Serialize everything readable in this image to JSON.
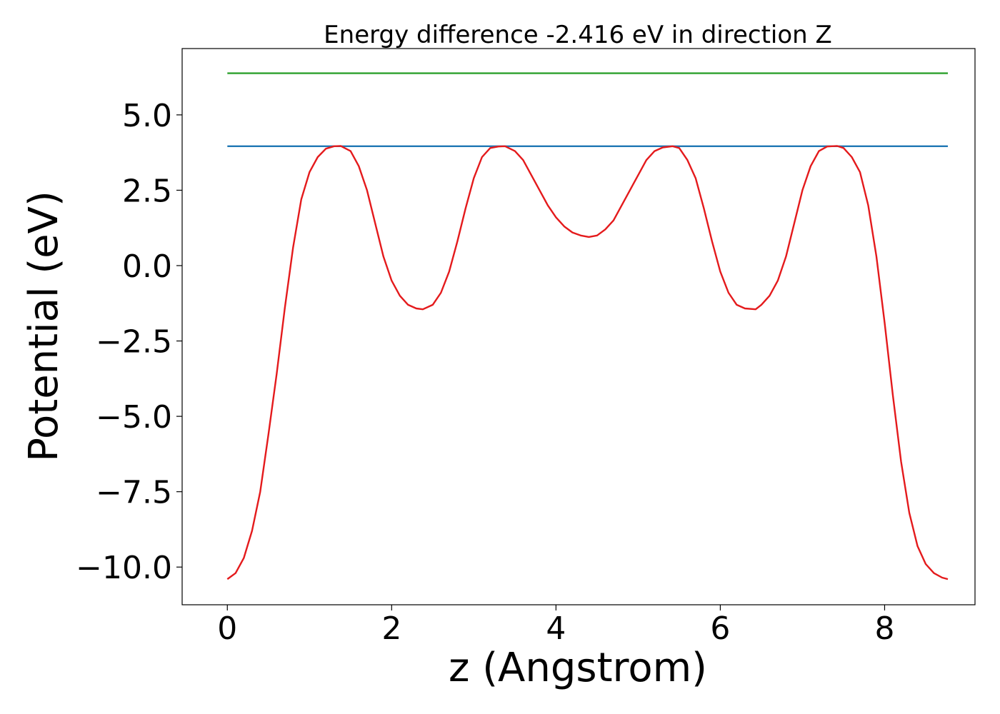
{
  "chart_data": {
    "type": "line",
    "title": "Energy difference -2.416 eV in direction Z",
    "xlabel": "z (Angstrom)",
    "ylabel": "Potential (eV)",
    "xlim": [
      -0.55,
      9.1
    ],
    "ylim": [
      -11.25,
      7.2
    ],
    "xticks": [
      0,
      2,
      4,
      6,
      8
    ],
    "xtick_labels": [
      "0",
      "2",
      "4",
      "6",
      "8"
    ],
    "yticks": [
      5.0,
      2.5,
      0.0,
      -2.5,
      -5.0,
      -7.5,
      -10.0
    ],
    "ytick_labels": [
      "5.0",
      "2.5",
      "0.0",
      "−2.5",
      "−5.0",
      "−7.5",
      "−10.0"
    ],
    "grid": false,
    "series": [
      {
        "color": "#2ca02c",
        "x": [
          0.0,
          8.77
        ],
        "y": [
          6.38,
          6.38
        ]
      },
      {
        "color": "#1f77b4",
        "x": [
          0.0,
          8.77
        ],
        "y": [
          3.96,
          3.96
        ]
      },
      {
        "color": "#e41a1c",
        "x": [
          0.0,
          0.1,
          0.2,
          0.3,
          0.4,
          0.5,
          0.6,
          0.7,
          0.8,
          0.9,
          1.0,
          1.1,
          1.2,
          1.3,
          1.38,
          1.5,
          1.6,
          1.7,
          1.8,
          1.9,
          2.0,
          2.1,
          2.2,
          2.3,
          2.38,
          2.5,
          2.6,
          2.7,
          2.8,
          2.9,
          3.0,
          3.1,
          3.2,
          3.3,
          3.38,
          3.5,
          3.6,
          3.7,
          3.8,
          3.9,
          4.0,
          4.1,
          4.2,
          4.3,
          4.4,
          4.5,
          4.6,
          4.7,
          4.8,
          4.9,
          5.0,
          5.1,
          5.2,
          5.3,
          5.42,
          5.5,
          5.6,
          5.7,
          5.8,
          5.9,
          6.0,
          6.1,
          6.2,
          6.3,
          6.43,
          6.5,
          6.6,
          6.7,
          6.8,
          6.9,
          7.0,
          7.1,
          7.2,
          7.3,
          7.42,
          7.5,
          7.6,
          7.7,
          7.8,
          7.9,
          8.0,
          8.1,
          8.2,
          8.3,
          8.4,
          8.5,
          8.6,
          8.7,
          8.77
        ],
        "y": [
          -10.4,
          -10.2,
          -9.7,
          -8.8,
          -7.5,
          -5.6,
          -3.6,
          -1.4,
          0.6,
          2.2,
          3.1,
          3.6,
          3.88,
          3.96,
          3.97,
          3.8,
          3.3,
          2.5,
          1.4,
          0.3,
          -0.5,
          -1.0,
          -1.3,
          -1.42,
          -1.45,
          -1.3,
          -0.9,
          -0.2,
          0.8,
          1.9,
          2.9,
          3.6,
          3.9,
          3.95,
          3.96,
          3.8,
          3.5,
          3.0,
          2.5,
          2.0,
          1.6,
          1.3,
          1.1,
          1.0,
          0.95,
          1.0,
          1.2,
          1.5,
          2.0,
          2.5,
          3.0,
          3.5,
          3.8,
          3.92,
          3.96,
          3.9,
          3.5,
          2.9,
          1.9,
          0.8,
          -0.2,
          -0.9,
          -1.3,
          -1.42,
          -1.45,
          -1.3,
          -1.0,
          -0.5,
          0.3,
          1.4,
          2.5,
          3.3,
          3.8,
          3.95,
          3.97,
          3.9,
          3.6,
          3.1,
          2.0,
          0.3,
          -1.9,
          -4.3,
          -6.5,
          -8.2,
          -9.3,
          -9.9,
          -10.2,
          -10.35,
          -10.4
        ]
      }
    ]
  }
}
